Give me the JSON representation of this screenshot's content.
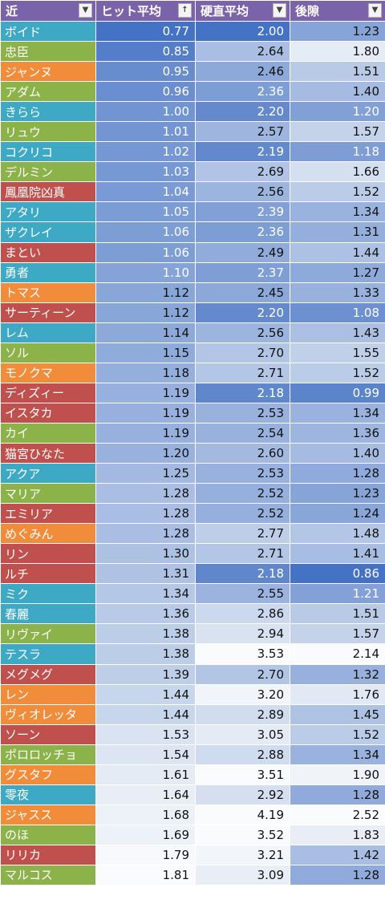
{
  "headers": [
    {
      "label": "近",
      "filter": "▼"
    },
    {
      "label": "ヒット平均",
      "filter": "↑"
    },
    {
      "label": "硬直平均",
      "filter": "▼"
    },
    {
      "label": "後隙",
      "filter": "▼"
    }
  ],
  "rows": [
    {
      "name": "ボイド",
      "cat": "teal",
      "hit": "0.77",
      "stun": "2.00",
      "rec": "1.23"
    },
    {
      "name": "忠臣",
      "cat": "green",
      "hit": "0.85",
      "stun": "2.64",
      "rec": "1.80"
    },
    {
      "name": "ジャンヌ",
      "cat": "orange",
      "hit": "0.95",
      "stun": "2.46",
      "rec": "1.51"
    },
    {
      "name": "アダム",
      "cat": "green",
      "hit": "0.96",
      "stun": "2.36",
      "rec": "1.40"
    },
    {
      "name": "きらら",
      "cat": "teal",
      "hit": "1.00",
      "stun": "2.20",
      "rec": "1.20"
    },
    {
      "name": "リュウ",
      "cat": "green",
      "hit": "1.01",
      "stun": "2.57",
      "rec": "1.57"
    },
    {
      "name": "コクリコ",
      "cat": "teal",
      "hit": "1.02",
      "stun": "2.19",
      "rec": "1.18"
    },
    {
      "name": "デルミン",
      "cat": "green",
      "hit": "1.03",
      "stun": "2.69",
      "rec": "1.66"
    },
    {
      "name": "鳳凰院凶真",
      "cat": "red",
      "hit": "1.04",
      "stun": "2.56",
      "rec": "1.52"
    },
    {
      "name": "アタリ",
      "cat": "teal",
      "hit": "1.05",
      "stun": "2.39",
      "rec": "1.34"
    },
    {
      "name": "ザクレイ",
      "cat": "teal",
      "hit": "1.06",
      "stun": "2.36",
      "rec": "1.31"
    },
    {
      "name": "まとい",
      "cat": "red",
      "hit": "1.06",
      "stun": "2.49",
      "rec": "1.44"
    },
    {
      "name": "勇者",
      "cat": "teal",
      "hit": "1.10",
      "stun": "2.37",
      "rec": "1.27"
    },
    {
      "name": "トマス",
      "cat": "orange",
      "hit": "1.12",
      "stun": "2.45",
      "rec": "1.33"
    },
    {
      "name": "サーティーン",
      "cat": "red",
      "hit": "1.12",
      "stun": "2.20",
      "rec": "1.08"
    },
    {
      "name": "レム",
      "cat": "teal",
      "hit": "1.14",
      "stun": "2.56",
      "rec": "1.43"
    },
    {
      "name": "ソル",
      "cat": "green",
      "hit": "1.15",
      "stun": "2.70",
      "rec": "1.55"
    },
    {
      "name": "モノクマ",
      "cat": "orange",
      "hit": "1.18",
      "stun": "2.71",
      "rec": "1.52"
    },
    {
      "name": "ディズィー",
      "cat": "red",
      "hit": "1.19",
      "stun": "2.18",
      "rec": "0.99"
    },
    {
      "name": "イスタカ",
      "cat": "red",
      "hit": "1.19",
      "stun": "2.53",
      "rec": "1.34"
    },
    {
      "name": "カイ",
      "cat": "green",
      "hit": "1.19",
      "stun": "2.54",
      "rec": "1.36"
    },
    {
      "name": "猫宮ひなた",
      "cat": "red",
      "hit": "1.20",
      "stun": "2.60",
      "rec": "1.40"
    },
    {
      "name": "アクア",
      "cat": "teal",
      "hit": "1.25",
      "stun": "2.53",
      "rec": "1.28"
    },
    {
      "name": "マリア",
      "cat": "green",
      "hit": "1.28",
      "stun": "2.52",
      "rec": "1.23"
    },
    {
      "name": "エミリア",
      "cat": "red",
      "hit": "1.28",
      "stun": "2.52",
      "rec": "1.24"
    },
    {
      "name": "めぐみん",
      "cat": "orange",
      "hit": "1.28",
      "stun": "2.77",
      "rec": "1.48"
    },
    {
      "name": "リン",
      "cat": "red",
      "hit": "1.30",
      "stun": "2.71",
      "rec": "1.41"
    },
    {
      "name": "ルチ",
      "cat": "red",
      "hit": "1.31",
      "stun": "2.18",
      "rec": "0.86"
    },
    {
      "name": "ミク",
      "cat": "teal",
      "hit": "1.34",
      "stun": "2.55",
      "rec": "1.21"
    },
    {
      "name": "春麗",
      "cat": "teal",
      "hit": "1.36",
      "stun": "2.86",
      "rec": "1.51"
    },
    {
      "name": "リヴァイ",
      "cat": "green",
      "hit": "1.38",
      "stun": "2.94",
      "rec": "1.57"
    },
    {
      "name": "テスラ",
      "cat": "teal",
      "hit": "1.38",
      "stun": "3.53",
      "rec": "2.14"
    },
    {
      "name": "メグメグ",
      "cat": "red",
      "hit": "1.39",
      "stun": "2.70",
      "rec": "1.32"
    },
    {
      "name": "レン",
      "cat": "orange",
      "hit": "1.44",
      "stun": "3.20",
      "rec": "1.76"
    },
    {
      "name": "ヴィオレッタ",
      "cat": "orange",
      "hit": "1.44",
      "stun": "2.89",
      "rec": "1.45"
    },
    {
      "name": "ソーン",
      "cat": "red",
      "hit": "1.53",
      "stun": "3.05",
      "rec": "1.52"
    },
    {
      "name": "ポロロッチョ",
      "cat": "green",
      "hit": "1.54",
      "stun": "2.88",
      "rec": "1.34"
    },
    {
      "name": "グスタフ",
      "cat": "orange",
      "hit": "1.61",
      "stun": "3.51",
      "rec": "1.90"
    },
    {
      "name": "零夜",
      "cat": "teal",
      "hit": "1.64",
      "stun": "2.92",
      "rec": "1.28"
    },
    {
      "name": "ジャスス",
      "cat": "orange",
      "hit": "1.68",
      "stun": "4.19",
      "rec": "2.52"
    },
    {
      "name": "のほ",
      "cat": "green",
      "hit": "1.69",
      "stun": "3.52",
      "rec": "1.83"
    },
    {
      "name": "リリカ",
      "cat": "red",
      "hit": "1.79",
      "stun": "3.21",
      "rec": "1.42"
    },
    {
      "name": "マルコス",
      "cat": "green",
      "hit": "1.81",
      "stun": "3.09",
      "rec": "1.28"
    }
  ]
}
